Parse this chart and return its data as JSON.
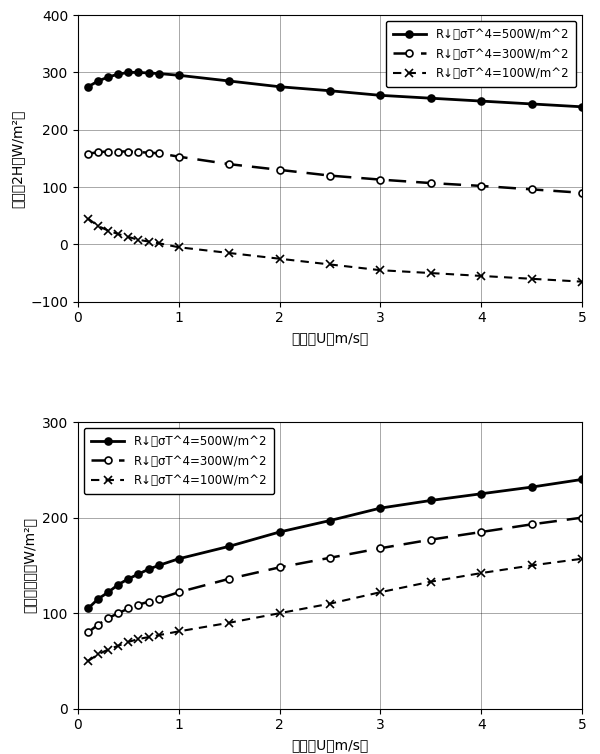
{
  "top": {
    "ylabel_parts": [
      "顬熱（2H（W/m²）"
    ],
    "ylabel": "顬熱　2H（W/m²）",
    "xlabel": "風速　U（m/s）",
    "ylim": [
      -100,
      400
    ],
    "yticks": [
      -100,
      0,
      100,
      200,
      300,
      400
    ],
    "xlim": [
      0,
      5
    ],
    "xticks": [
      0,
      1,
      2,
      3,
      4,
      5
    ],
    "series": [
      {
        "label": "R↓－σT^4=500W/m^2",
        "linestyle": "solid",
        "marker": "o",
        "markersize": 5,
        "fillstyle": "full",
        "linewidth": 2.0,
        "x": [
          0.1,
          0.2,
          0.3,
          0.4,
          0.5,
          0.6,
          0.7,
          0.8,
          1.0,
          1.5,
          2.0,
          2.5,
          3.0,
          3.5,
          4.0,
          4.5,
          5.0
        ],
        "y": [
          275,
          285,
          292,
          297,
          300,
          300,
          299,
          298,
          295,
          285,
          275,
          268,
          260,
          255,
          250,
          245,
          240
        ]
      },
      {
        "label": "R↓－σT^4=300W/m^2",
        "linestyle": "dashed",
        "marker": "o",
        "markersize": 5,
        "fillstyle": "none",
        "linewidth": 1.8,
        "x": [
          0.1,
          0.2,
          0.3,
          0.4,
          0.5,
          0.6,
          0.7,
          0.8,
          1.0,
          1.5,
          2.0,
          2.5,
          3.0,
          3.5,
          4.0,
          4.5,
          5.0
        ],
        "y": [
          158,
          161,
          162,
          162,
          162,
          161,
          160,
          159,
          153,
          140,
          130,
          120,
          113,
          107,
          102,
          96,
          90
        ]
      },
      {
        "label": "R↓－σT^4=100W/m^2",
        "linestyle": "dashed",
        "marker": "x",
        "markersize": 6,
        "fillstyle": "full",
        "linewidth": 1.5,
        "x": [
          0.1,
          0.2,
          0.3,
          0.4,
          0.5,
          0.6,
          0.7,
          0.8,
          1.0,
          1.5,
          2.0,
          2.5,
          3.0,
          3.5,
          4.0,
          4.5,
          5.0
        ],
        "y": [
          45,
          32,
          24,
          18,
          13,
          8,
          5,
          2,
          -5,
          -15,
          -25,
          -35,
          -45,
          -50,
          -55,
          -60,
          -65
        ]
      }
    ]
  },
  "bottom": {
    "ylabel": "蔣散の潜熱（W/m²）",
    "xlabel": "風速　U（m/s）",
    "ylim": [
      0,
      300
    ],
    "yticks": [
      0,
      100,
      200,
      300
    ],
    "xlim": [
      0,
      5
    ],
    "xticks": [
      0,
      1,
      2,
      3,
      4,
      5
    ],
    "series": [
      {
        "label": "R↓－σT^4=500W/m^2",
        "linestyle": "solid",
        "marker": "o",
        "markersize": 5,
        "fillstyle": "full",
        "linewidth": 2.0,
        "x": [
          0.1,
          0.2,
          0.3,
          0.4,
          0.5,
          0.6,
          0.7,
          0.8,
          1.0,
          1.5,
          2.0,
          2.5,
          3.0,
          3.5,
          4.0,
          4.5,
          5.0
        ],
        "y": [
          105,
          115,
          122,
          130,
          136,
          141,
          146,
          150,
          157,
          170,
          185,
          197,
          210,
          218,
          225,
          232,
          240
        ]
      },
      {
        "label": "R↓－σT^4=300W/m^2",
        "linestyle": "dashed",
        "marker": "o",
        "markersize": 5,
        "fillstyle": "none",
        "linewidth": 1.8,
        "x": [
          0.1,
          0.2,
          0.3,
          0.4,
          0.5,
          0.6,
          0.7,
          0.8,
          1.0,
          1.5,
          2.0,
          2.5,
          3.0,
          3.5,
          4.0,
          4.5,
          5.0
        ],
        "y": [
          80,
          88,
          95,
          100,
          105,
          109,
          112,
          115,
          122,
          136,
          148,
          158,
          168,
          177,
          185,
          193,
          200
        ]
      },
      {
        "label": "R↓－σT^4=100W/m^2",
        "linestyle": "dashed",
        "marker": "x",
        "markersize": 6,
        "fillstyle": "full",
        "linewidth": 1.5,
        "x": [
          0.1,
          0.2,
          0.3,
          0.4,
          0.5,
          0.6,
          0.7,
          0.8,
          1.0,
          1.5,
          2.0,
          2.5,
          3.0,
          3.5,
          4.0,
          4.5,
          5.0
        ],
        "y": [
          50,
          57,
          62,
          66,
          70,
          73,
          75,
          77,
          81,
          90,
          100,
          110,
          122,
          133,
          142,
          150,
          157
        ]
      }
    ]
  }
}
